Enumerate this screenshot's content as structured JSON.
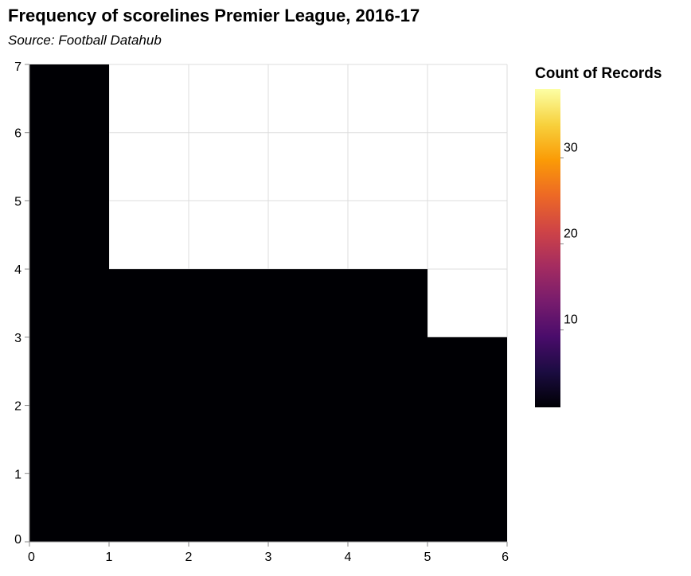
{
  "chart_data": {
    "type": "heatmap",
    "title": "Frequency of scorelines Premier League, 2016-17",
    "subtitle": "Source: Football Datahub",
    "xlabel": "",
    "ylabel": "",
    "xlim": [
      0,
      6
    ],
    "ylim": [
      0,
      7
    ],
    "x_ticks": [
      0,
      1,
      2,
      3,
      4,
      5,
      6
    ],
    "y_ticks": [
      0,
      1,
      2,
      3,
      4,
      5,
      6,
      7
    ],
    "grid": true,
    "cells": [
      {
        "x0": 0,
        "x1": 1,
        "y0": 0,
        "y1": 7
      },
      {
        "x0": 1,
        "x1": 2,
        "y0": 0,
        "y1": 4
      },
      {
        "x0": 2,
        "x1": 3,
        "y0": 0,
        "y1": 4
      },
      {
        "x0": 3,
        "x1": 4,
        "y0": 0,
        "y1": 4
      },
      {
        "x0": 4,
        "x1": 5,
        "y0": 0,
        "y1": 4
      },
      {
        "x0": 5,
        "x1": 6,
        "y0": 0,
        "y1": 3
      }
    ],
    "cell_color": "#000004",
    "legend": {
      "title": "Count of Records",
      "placement": "right",
      "range": [
        1,
        38
      ],
      "ticks": [
        10,
        20,
        30
      ],
      "colors": [
        "#000004",
        "#1b0c41",
        "#4a0c6b",
        "#781c6d",
        "#a52c60",
        "#cf4446",
        "#ed6925",
        "#fb9b06",
        "#f7d13d",
        "#fcffa4"
      ]
    }
  }
}
